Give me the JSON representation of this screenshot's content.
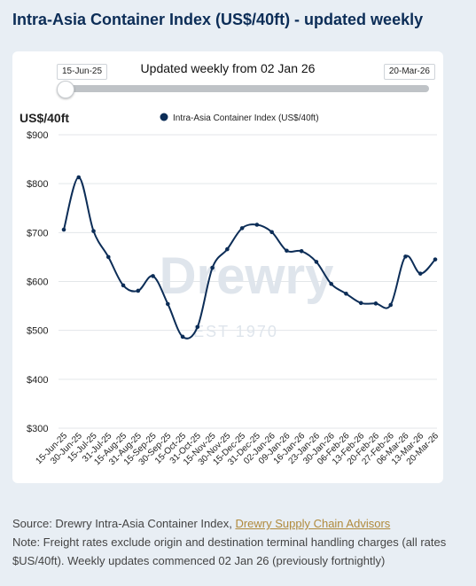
{
  "header": {
    "title": "Intra-Asia Container Index (US$/40ft) - updated weekly"
  },
  "slider": {
    "start_label": "15-Jun-25",
    "end_label": "20-Mar-26",
    "caption": "Updated weekly from 02 Jan 26",
    "position": 0
  },
  "chart_data": {
    "type": "line",
    "ylabel": "US$/40ft",
    "ylim": [
      300,
      900
    ],
    "yticks": [
      "$900",
      "$800",
      "$700",
      "$600",
      "$500",
      "$400",
      "$300"
    ],
    "grid": true,
    "legend_position": "top",
    "watermark": {
      "brand": "Drewry",
      "est": "EST 1970"
    },
    "series": [
      {
        "name": "Intra-Asia Container Index (US$/40ft)",
        "color": "#0c2d57",
        "values": [
          706,
          813,
          703,
          650,
          592,
          581,
          611,
          554,
          487,
          507,
          628,
          666,
          709,
          716,
          701,
          663,
          662,
          640,
          595,
          575,
          556,
          555,
          552,
          651,
          616,
          645
        ]
      }
    ],
    "x": [
      "15-Jun-25",
      "30-Jun-25",
      "15-Jul-25",
      "31-Jul-25",
      "15-Aug-25",
      "31-Aug-25",
      "15-Sep-25",
      "30-Sep-25",
      "15-Oct-25",
      "31-Oct-25",
      "15-Nov-25",
      "30-Nov-25",
      "15-Dec-25",
      "31-Dec-25",
      "02-Jan-26",
      "09-Jan-26",
      "16-Jan-26",
      "23-Jan-26",
      "30-Jan-26",
      "06-Feb-26",
      "13-Feb-26",
      "20-Feb-26",
      "27-Feb-26",
      "06-Mar-26",
      "13-Mar-26",
      "20-Mar-26"
    ]
  },
  "footer": {
    "source_prefix": "Source: Drewry Intra-Asia Container Index, ",
    "source_link": "Drewry Supply Chain Advisors",
    "note": "Note: Freight rates exclude origin and destination terminal handling charges (all rates $US/40ft). Weekly updates commenced 02 Jan 26 (previously fortnightly)"
  }
}
